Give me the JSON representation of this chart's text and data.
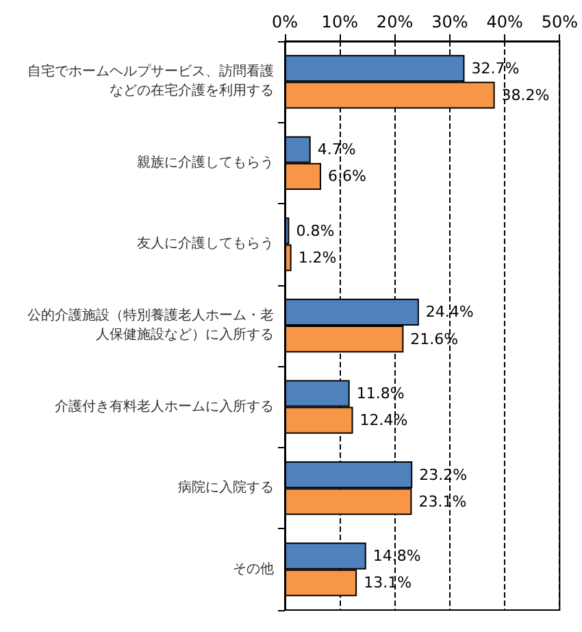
{
  "chart_data": {
    "type": "bar",
    "orientation": "horizontal",
    "categories": [
      "自宅でホームヘルプサービス、訪問看護などの在宅介護を利用する",
      "親族に介護してもらう",
      "友人に介護してもらう",
      "公的介護施設（特別養護老人ホーム・老人保健施設など）に入所する",
      "介護付き有料老人ホームに入所する",
      "病院に入院する",
      "その他"
    ],
    "series": [
      {
        "color": "#4f81bd",
        "values": [
          32.7,
          4.7,
          0.8,
          24.4,
          11.8,
          23.2,
          14.8
        ],
        "value_labels": [
          "32.7%",
          "4.7%",
          "0.8%",
          "24.4%",
          "11.8%",
          "23.2%",
          "14.8%"
        ]
      },
      {
        "color": "#f79646",
        "values": [
          38.2,
          6.6,
          1.2,
          21.6,
          12.4,
          23.1,
          13.1
        ],
        "value_labels": [
          "38.2%",
          "6.6%",
          "1.2%",
          "21.6%",
          "12.4%",
          "23.1%",
          "13.1%"
        ]
      }
    ],
    "xlim": [
      0,
      50
    ],
    "xticks": [
      {
        "value": 0,
        "label": "0%"
      },
      {
        "value": 10,
        "label": "10%"
      },
      {
        "value": 20,
        "label": "20%"
      },
      {
        "value": 30,
        "label": "30%"
      },
      {
        "value": 40,
        "label": "40%"
      },
      {
        "value": 50,
        "label": "50%"
      }
    ],
    "grid": "x"
  }
}
